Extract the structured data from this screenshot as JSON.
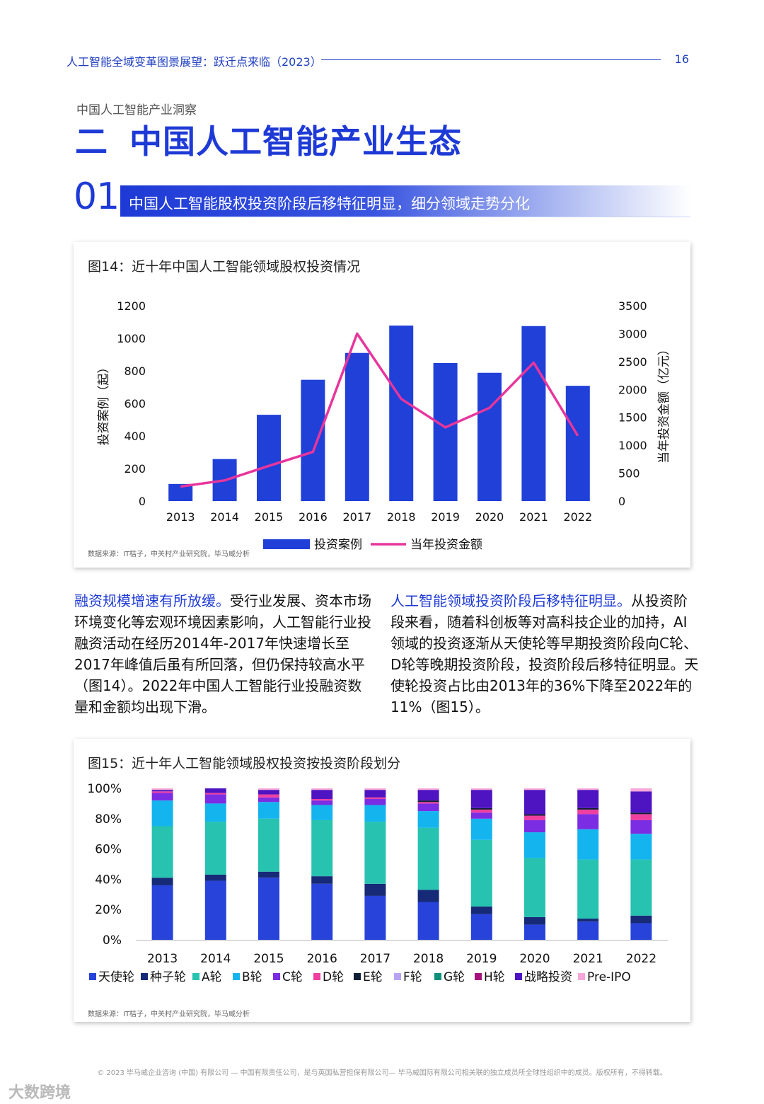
{
  "header": {
    "title": "人工智能全域变革图景展望：跃迁点来临（2023）",
    "page_number": "16"
  },
  "section": {
    "label": "中国人工智能产业洞察",
    "number": "二",
    "title": "中国人工智能产业生态"
  },
  "subsection": {
    "number": "01",
    "title": "中国人工智能股权投资阶段后移特征明显，细分领域走势分化"
  },
  "figure14": {
    "title": "图14：近十年中国人工智能领域股权投资情况",
    "source": "数据来源：IT桔子，中关村产业研究院，毕马威分析"
  },
  "figure15": {
    "title": "图15：近十年人工智能领域股权投资按投资阶段划分",
    "source": "数据来源：IT桔子，中关村产业研究院，毕马威分析"
  },
  "paragraph_left": {
    "lead": "融资规模增速有所放缓。",
    "body": "受行业发展、资本市场环境变化等宏观环境因素影响，人工智能行业投融资活动在经历2014年-2017年快速增长至2017年峰值后虽有所回落，但仍保持较高水平（图14）。2022年中国人工智能行业投融资数量和金额均出现下滑。"
  },
  "paragraph_right": {
    "lead": "人工智能领域投资阶段后移特征明显。",
    "body": "从投资阶段来看，随着科创板等对高科技企业的加持，AI领域的投资逐渐从天使轮等早期投资阶段向C轮、D轮等晚期投资阶段，投资阶段后移特征明显。天使轮投资占比由2013年的36%下降至2022年的11%（图15）。"
  },
  "footer": {
    "text": "© 2023 毕马威企业咨询 (中国) 有限公司 — 中国有限责任公司，是与英国私营担保有限公司— 毕马威国际有限公司相关联的独立成员所全球性组织中的成员。版权所有，不得转载。",
    "watermark": "大数跨境"
  },
  "chart_data": [
    {
      "type": "bar",
      "categories": [
        "2013",
        "2014",
        "2015",
        "2016",
        "2017",
        "2018",
        "2019",
        "2020",
        "2021",
        "2022"
      ],
      "series": [
        {
          "name": "投资案例",
          "type": "bar",
          "axis": "left",
          "color": "#2040d8",
          "values": [
            105,
            258,
            530,
            745,
            910,
            1078,
            848,
            788,
            1075,
            708
          ]
        },
        {
          "name": "当年投资金额",
          "type": "line",
          "axis": "right",
          "color": "#e8359c",
          "values": [
            260,
            370,
            630,
            880,
            3000,
            1830,
            1320,
            1670,
            2480,
            1170
          ]
        }
      ],
      "ylabel": "投资案例（起）",
      "y2label": "当年投资金额（亿元）",
      "ylim": [
        0,
        1200
      ],
      "y2lim": [
        0,
        3500
      ],
      "yticks": [
        "0",
        "200",
        "400",
        "600",
        "800",
        "1000",
        "1200"
      ],
      "y2ticks": [
        "0",
        "500",
        "1000",
        "1500",
        "2000",
        "2500",
        "3000",
        "3500"
      ],
      "legend": "bottom",
      "grid": false
    },
    {
      "type": "bar",
      "stacked": true,
      "categories": [
        "2013",
        "2014",
        "2015",
        "2016",
        "2017",
        "2018",
        "2019",
        "2020",
        "2021",
        "2022"
      ],
      "yticks": [
        "0%",
        "20%",
        "40%",
        "60%",
        "80%",
        "100%"
      ],
      "ylim": [
        0,
        100
      ],
      "legend": "bottom",
      "grid": false,
      "series": [
        {
          "name": "天使轮",
          "color": "#2743d9",
          "values": [
            36,
            39,
            41,
            37,
            29,
            25,
            17,
            10,
            12,
            11
          ]
        },
        {
          "name": "种子轮",
          "color": "#172a78",
          "values": [
            5,
            4,
            4,
            5,
            8,
            8,
            5,
            5,
            2,
            5
          ]
        },
        {
          "name": "A轮",
          "color": "#27c3b0",
          "values": [
            34,
            35,
            35,
            37,
            41,
            41,
            44,
            39,
            39,
            37
          ]
        },
        {
          "name": "B轮",
          "color": "#14b4ef",
          "values": [
            17,
            12,
            11,
            10,
            11,
            11,
            14,
            17,
            20,
            17
          ]
        },
        {
          "name": "C轮",
          "color": "#7b2de3",
          "values": [
            5,
            6,
            3,
            3,
            4,
            5,
            4,
            8,
            10,
            9
          ]
        },
        {
          "name": "D轮",
          "color": "#ef3fa0",
          "values": [
            1,
            1,
            2,
            1,
            1,
            1,
            2,
            3,
            3,
            4
          ]
        },
        {
          "name": "E轮",
          "color": "#101e36",
          "values": [
            0,
            0,
            0,
            0,
            0,
            1,
            1,
            1,
            1,
            1
          ]
        },
        {
          "name": "F轮",
          "color": "#b8a3f2",
          "values": [
            0,
            0,
            0,
            0,
            0,
            0,
            0,
            0,
            0,
            0
          ]
        },
        {
          "name": "G轮",
          "color": "#0d8f7a",
          "values": [
            0,
            0,
            0,
            0,
            0,
            0,
            0,
            0,
            0,
            0
          ]
        },
        {
          "name": "H轮",
          "color": "#a6127c",
          "values": [
            0,
            0,
            0,
            0,
            0,
            0,
            0,
            0,
            0,
            0
          ]
        },
        {
          "name": "战略投资",
          "color": "#4e14c2",
          "values": [
            1,
            3,
            3,
            6,
            5,
            7,
            12,
            16,
            12,
            14
          ]
        },
        {
          "name": "Pre-IPO",
          "color": "#f6a6d8",
          "values": [
            1,
            0,
            1,
            1,
            1,
            1,
            1,
            1,
            1,
            2
          ]
        }
      ]
    }
  ]
}
